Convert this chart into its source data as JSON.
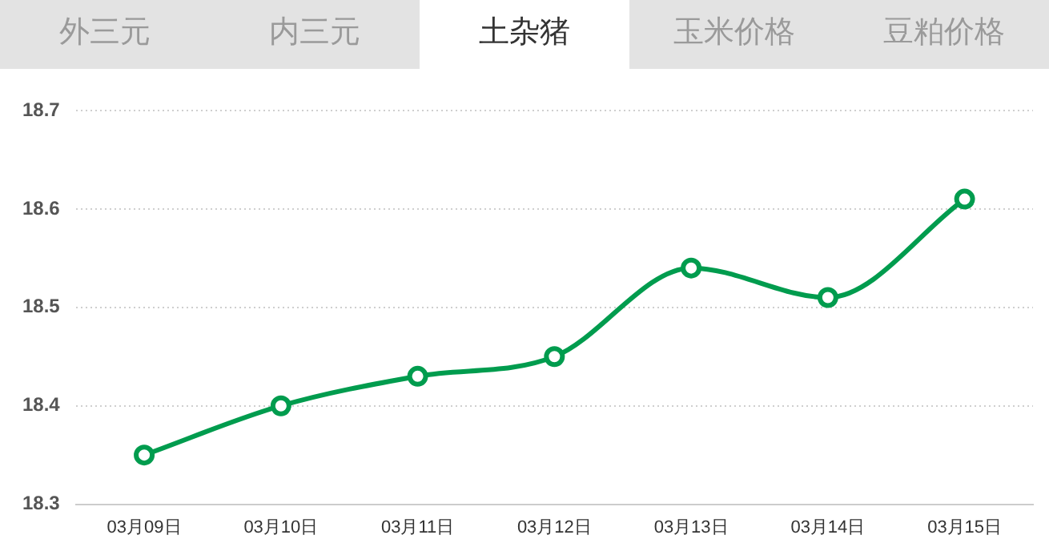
{
  "chart_data": {
    "type": "line",
    "title": "土杂猪",
    "annotations": [
      "外三元",
      "内三元",
      "玉米价格",
      "豆粕价格"
    ],
    "categories": [
      "03月09日",
      "03月10日",
      "03月11日",
      "03月12日",
      "03月13日",
      "03月14日",
      "03月15日"
    ],
    "series": [
      {
        "color": "#009c4e",
        "values": [
          18.35,
          18.4,
          18.43,
          18.45,
          18.54,
          18.51,
          18.61
        ]
      }
    ],
    "ylim": [
      18.3,
      18.7
    ],
    "yticks": [
      18.3,
      18.4,
      18.5,
      18.6,
      18.7
    ],
    "grid": "y",
    "legend": false,
    "marker": "circle",
    "line_style": "solid"
  }
}
